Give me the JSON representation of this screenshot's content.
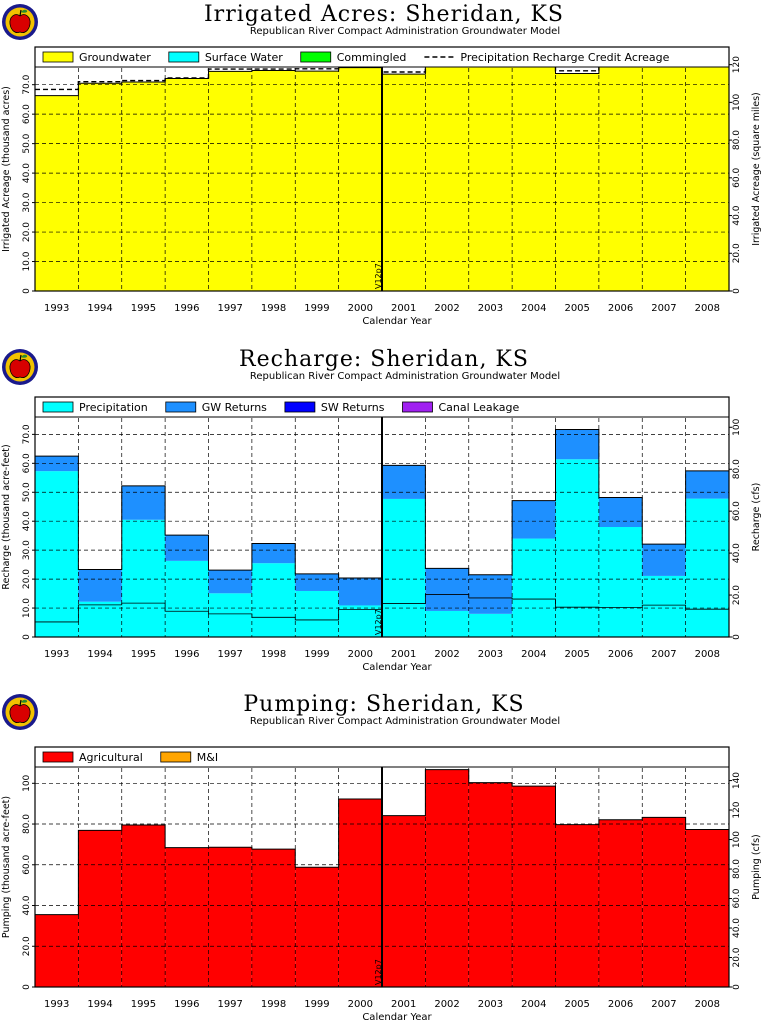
{
  "chart_data": [
    {
      "type": "bar",
      "title": "Irrigated Acres: Sheridan, KS",
      "subtitle": "Republican River Compact Administration Groundwater Model",
      "xlabel": "Calendar Year",
      "ylabel": "Irrigated Acreage (thousand acres)",
      "ylabel_right": "Irrigated Acreage (square miles)",
      "categories": [
        "1993",
        "1994",
        "1995",
        "1996",
        "1997",
        "1998",
        "1999",
        "2000",
        "2001",
        "2002",
        "2003",
        "2004",
        "2005",
        "2006",
        "2007",
        "2008"
      ],
      "ylim": [
        0,
        76
      ],
      "yticks": [
        "0",
        "10.0",
        "20.0",
        "30.0",
        "40.0",
        "50.0",
        "60.0",
        "70.0"
      ],
      "right_ylim": [
        0,
        118.75
      ],
      "right_yticks": [
        "0",
        "20.0",
        "40.0",
        "60.0",
        "80.0",
        "100",
        "120"
      ],
      "series": [
        {
          "name": "Groundwater",
          "color": "#ffff00",
          "values": [
            66.3,
            70.5,
            70.9,
            72.1,
            74.5,
            74.8,
            74.6,
            75.8,
            73.6,
            76.2,
            76.7,
            76.8,
            73.8,
            76.2,
            76.2,
            77.2
          ]
        },
        {
          "name": "Surface Water",
          "color": "#00ffff",
          "values": [
            0,
            0,
            0,
            0,
            0,
            0,
            0,
            0,
            0,
            0,
            0,
            0,
            0,
            0,
            0,
            0
          ]
        },
        {
          "name": "Commingled",
          "color": "#00ff00",
          "values": [
            0,
            0,
            0,
            0,
            0,
            0,
            0,
            0,
            0,
            0,
            0,
            0,
            0,
            0,
            0,
            0
          ]
        }
      ],
      "line_series": {
        "name": "Precipitation Recharge Credit Acreage",
        "style": "dashed",
        "values": [
          68.4,
          71.0,
          71.4,
          72.3,
          75.3,
          75.3,
          75.4,
          76.0,
          74.3,
          76.3,
          77.2,
          77.3,
          74.7,
          76.6,
          76.9,
          77.5
        ]
      },
      "vline": {
        "label": "V12p7",
        "after_category": "2000"
      },
      "legend": "top",
      "grid": true
    },
    {
      "type": "bar",
      "title": "Recharge: Sheridan, KS",
      "subtitle": "Republican River Compact Administration Groundwater Model",
      "xlabel": "Calendar Year",
      "ylabel": "Recharge (thousand acre-feet)",
      "ylabel_right": "Recharge (cfs)",
      "categories": [
        "1993",
        "1994",
        "1995",
        "1996",
        "1997",
        "1998",
        "1999",
        "2000",
        "2001",
        "2002",
        "2003",
        "2004",
        "2005",
        "2006",
        "2007",
        "2008"
      ],
      "ylim": [
        0,
        76
      ],
      "yticks": [
        "0",
        "10.0",
        "20.0",
        "30.0",
        "40.0",
        "50.0",
        "60.0",
        "70.0"
      ],
      "right_ylim": [
        0,
        104.9
      ],
      "right_yticks": [
        "0",
        "20.0",
        "40.0",
        "60.0",
        "80.0",
        "100"
      ],
      "series": [
        {
          "name": "Precipitation",
          "color": "#00ffff",
          "values": [
            57.3,
            12.2,
            40.5,
            26.3,
            15.1,
            25.5,
            15.9,
            10.9,
            47.7,
            9.0,
            8.0,
            34.0,
            61.4,
            38.0,
            21.1,
            47.8
          ]
        },
        {
          "name": "GW Returns",
          "color": "#1e90ff",
          "values": [
            5.2,
            11.1,
            11.7,
            8.9,
            8.0,
            6.8,
            5.9,
            9.5,
            11.6,
            14.7,
            13.5,
            13.1,
            10.3,
            10.2,
            11.0,
            9.6
          ]
        },
        {
          "name": "SW Returns",
          "color": "#0000ff",
          "values": [
            0,
            0,
            0,
            0,
            0,
            0,
            0,
            0,
            0,
            0,
            0,
            0,
            0,
            0,
            0,
            0
          ]
        },
        {
          "name": "Canal Leakage",
          "color": "#a020f0",
          "values": [
            0,
            0,
            0,
            0,
            0,
            0,
            0,
            0,
            0,
            0,
            0,
            0,
            0,
            0,
            0,
            0
          ]
        }
      ],
      "vline": {
        "label": "V12p7",
        "after_category": "2000"
      },
      "legend": "top",
      "grid": true
    },
    {
      "type": "bar",
      "title": "Pumping: Sheridan, KS",
      "subtitle": "Republican River Compact Administration Groundwater Model",
      "xlabel": "Calendar Year",
      "ylabel": "Pumping (thousand acre-feet)",
      "ylabel_right": "Pumping (cfs)",
      "categories": [
        "1993",
        "1994",
        "1995",
        "1996",
        "1997",
        "1998",
        "1999",
        "2000",
        "2001",
        "2002",
        "2003",
        "2004",
        "2005",
        "2006",
        "2007",
        "2008"
      ],
      "ylim": [
        0,
        108
      ],
      "yticks": [
        "0",
        "20.0",
        "40.0",
        "60.0",
        "80.0",
        "100"
      ],
      "right_ylim": [
        0,
        149.2
      ],
      "right_yticks": [
        "0",
        "20.0",
        "40.0",
        "60.0",
        "80.0",
        "100",
        "120",
        "140"
      ],
      "right_ytick_labels_extra": [
        "40.0",
        "60.0",
        "80.0"
      ],
      "series": [
        {
          "name": "Agricultural",
          "color": "#ff0000",
          "values": [
            35.5,
            76.9,
            79.5,
            68.4,
            68.6,
            67.7,
            58.8,
            92.3,
            84.1,
            106.7,
            100.3,
            98.6,
            79.7,
            82.1,
            83.3,
            77.3
          ]
        },
        {
          "name": "M&I",
          "color": "#ffa500",
          "values": [
            0,
            0,
            0,
            0,
            0,
            0,
            0,
            0,
            0,
            0,
            0,
            0,
            0,
            0,
            0,
            0
          ]
        }
      ],
      "vline": {
        "label": "V12p7",
        "after_category": "2000"
      },
      "legend": "top",
      "grid": true
    }
  ],
  "icon": "apple-logo"
}
